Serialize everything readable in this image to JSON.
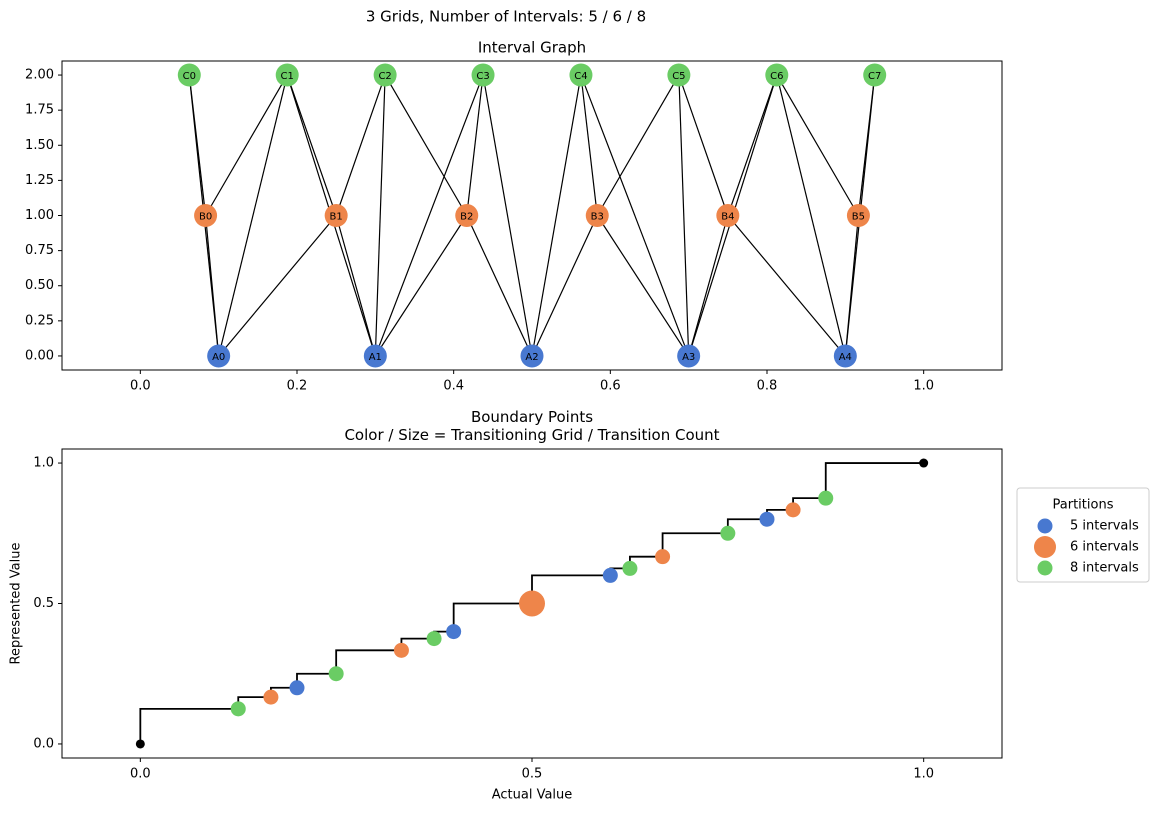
{
  "title": "3 Grids, Number of Intervals: 5 / 6 / 8",
  "chart_data": [
    {
      "type": "network",
      "title": "Interval Graph",
      "xlim": [
        -0.1,
        1.1
      ],
      "ylim": [
        -0.1,
        2.1
      ],
      "xticks": [
        {
          "value": 0,
          "label": "0.0"
        },
        {
          "value": 0.2,
          "label": "0.2"
        },
        {
          "value": 0.4,
          "label": "0.4"
        },
        {
          "value": 0.6,
          "label": "0.6"
        },
        {
          "value": 0.8,
          "label": "0.8"
        },
        {
          "value": 1,
          "label": "1.0"
        }
      ],
      "yticks": [
        {
          "value": 0,
          "label": "0.00"
        },
        {
          "value": 0.25,
          "label": "0.25"
        },
        {
          "value": 0.5,
          "label": "0.50"
        },
        {
          "value": 0.75,
          "label": "0.75"
        },
        {
          "value": 1,
          "label": "1.00"
        },
        {
          "value": 1.25,
          "label": "1.25"
        },
        {
          "value": 1.5,
          "label": "1.50"
        },
        {
          "value": 1.75,
          "label": "1.75"
        },
        {
          "value": 2,
          "label": "2.00"
        }
      ],
      "nodes": [
        {
          "label": "A0",
          "x": 0.1,
          "y": 0,
          "color": "#4878d0"
        },
        {
          "label": "A1",
          "x": 0.3,
          "y": 0,
          "color": "#4878d0"
        },
        {
          "label": "A2",
          "x": 0.5,
          "y": 0,
          "color": "#4878d0"
        },
        {
          "label": "A3",
          "x": 0.7,
          "y": 0,
          "color": "#4878d0"
        },
        {
          "label": "A4",
          "x": 0.9,
          "y": 0,
          "color": "#4878d0"
        },
        {
          "label": "B0",
          "x": 0.0833,
          "y": 1,
          "color": "#ee854a"
        },
        {
          "label": "B1",
          "x": 0.25,
          "y": 1,
          "color": "#ee854a"
        },
        {
          "label": "B2",
          "x": 0.4167,
          "y": 1,
          "color": "#ee854a"
        },
        {
          "label": "B3",
          "x": 0.5833,
          "y": 1,
          "color": "#ee854a"
        },
        {
          "label": "B4",
          "x": 0.75,
          "y": 1,
          "color": "#ee854a"
        },
        {
          "label": "B5",
          "x": 0.9167,
          "y": 1,
          "color": "#ee854a"
        },
        {
          "label": "C0",
          "x": 0.0625,
          "y": 2,
          "color": "#6acc64"
        },
        {
          "label": "C1",
          "x": 0.1875,
          "y": 2,
          "color": "#6acc64"
        },
        {
          "label": "C2",
          "x": 0.3125,
          "y": 2,
          "color": "#6acc64"
        },
        {
          "label": "C3",
          "x": 0.4375,
          "y": 2,
          "color": "#6acc64"
        },
        {
          "label": "C4",
          "x": 0.5625,
          "y": 2,
          "color": "#6acc64"
        },
        {
          "label": "C5",
          "x": 0.6875,
          "y": 2,
          "color": "#6acc64"
        },
        {
          "label": "C6",
          "x": 0.8125,
          "y": 2,
          "color": "#6acc64"
        },
        {
          "label": "C7",
          "x": 0.9375,
          "y": 2,
          "color": "#6acc64"
        }
      ],
      "edges": [
        [
          0,
          5
        ],
        [
          0,
          6
        ],
        [
          0,
          11
        ],
        [
          0,
          12
        ],
        [
          1,
          6
        ],
        [
          1,
          7
        ],
        [
          1,
          12
        ],
        [
          1,
          13
        ],
        [
          1,
          14
        ],
        [
          2,
          7
        ],
        [
          2,
          8
        ],
        [
          2,
          14
        ],
        [
          2,
          15
        ],
        [
          3,
          8
        ],
        [
          3,
          9
        ],
        [
          3,
          15
        ],
        [
          3,
          16
        ],
        [
          3,
          17
        ],
        [
          4,
          9
        ],
        [
          4,
          10
        ],
        [
          4,
          17
        ],
        [
          4,
          18
        ],
        [
          5,
          11
        ],
        [
          5,
          12
        ],
        [
          6,
          12
        ],
        [
          6,
          13
        ],
        [
          7,
          13
        ],
        [
          7,
          14
        ],
        [
          8,
          15
        ],
        [
          8,
          16
        ],
        [
          9,
          16
        ],
        [
          9,
          17
        ],
        [
          10,
          17
        ],
        [
          10,
          18
        ]
      ]
    },
    {
      "type": "scatter",
      "title": "Boundary Points\nColor / Size = Transitioning Grid / Transition Count",
      "xlabel": "Actual Value",
      "ylabel": "Represented Value",
      "xlim": [
        -0.1,
        1.1
      ],
      "ylim": [
        -0.05,
        1.05
      ],
      "xticks": [
        {
          "value": 0,
          "label": "0.0"
        },
        {
          "value": 0.5,
          "label": "0.5"
        },
        {
          "value": 1,
          "label": "1.0"
        }
      ],
      "yticks": [
        {
          "value": 0,
          "label": "0.0"
        },
        {
          "value": 0.5,
          "label": "0.5"
        },
        {
          "value": 1,
          "label": "1.0"
        }
      ],
      "legend_title": "Partitions",
      "step": {
        "color": "#000000",
        "x": [
          0,
          0.125,
          0.1667,
          0.2,
          0.25,
          0.3333,
          0.375,
          0.4,
          0.5,
          0.6,
          0.625,
          0.6667,
          0.75,
          0.8,
          0.8333,
          0.875,
          1
        ],
        "y": [
          0,
          0.125,
          0.1667,
          0.2,
          0.25,
          0.3333,
          0.375,
          0.4,
          0.5,
          0.6,
          0.625,
          0.6667,
          0.75,
          0.8,
          0.8333,
          0.875,
          1
        ]
      },
      "endpoints": {
        "color": "#000000",
        "x": [
          0,
          1
        ],
        "y": [
          0,
          1
        ]
      },
      "series": [
        {
          "name": "5 intervals",
          "color": "#4878d0",
          "x": [
            0.2,
            0.4,
            0.6,
            0.8
          ],
          "y": [
            0.2,
            0.4,
            0.6,
            0.8
          ],
          "sizes": [
            1,
            1,
            1,
            1
          ]
        },
        {
          "name": "6 intervals",
          "color": "#ee854a",
          "x": [
            0.1667,
            0.3333,
            0.5,
            0.6667,
            0.8333
          ],
          "y": [
            0.1667,
            0.3333,
            0.5,
            0.6667,
            0.8333
          ],
          "sizes": [
            1,
            1,
            3,
            1,
            1
          ]
        },
        {
          "name": "8 intervals",
          "color": "#6acc64",
          "x": [
            0.125,
            0.25,
            0.375,
            0.625,
            0.75,
            0.875
          ],
          "y": [
            0.125,
            0.25,
            0.375,
            0.625,
            0.75,
            0.875
          ],
          "sizes": [
            1,
            1,
            1,
            1,
            1,
            1
          ]
        }
      ]
    }
  ]
}
